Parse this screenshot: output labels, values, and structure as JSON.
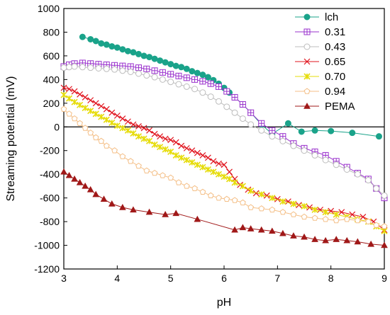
{
  "chart_data": {
    "type": "line",
    "xlabel": "pH",
    "ylabel": "Streaming potential (mV)",
    "xlim": [
      3,
      9
    ],
    "ylim": [
      -1200,
      1000
    ],
    "xticks": [
      3,
      4,
      5,
      6,
      7,
      8,
      9
    ],
    "yticks": [
      -1200,
      -1000,
      -800,
      -600,
      -400,
      -200,
      0,
      200,
      400,
      600,
      800,
      1000
    ],
    "zero_line": true,
    "grid": false,
    "legend_position": "top-right",
    "series": [
      {
        "name": "lch",
        "color": "#1aa38a",
        "marker": "circle-filled",
        "x": [
          3.35,
          3.5,
          3.6,
          3.7,
          3.8,
          3.9,
          4.0,
          4.1,
          4.2,
          4.3,
          4.4,
          4.5,
          4.6,
          4.7,
          4.8,
          4.9,
          5.0,
          5.1,
          5.2,
          5.3,
          5.4,
          5.5,
          5.6,
          5.7,
          5.8,
          5.9,
          6.0,
          6.1,
          6.2,
          6.35,
          6.5,
          6.7,
          6.9,
          7.2,
          7.45,
          7.7,
          8.0,
          8.4,
          8.9
        ],
        "y": [
          760,
          740,
          725,
          705,
          695,
          680,
          670,
          655,
          640,
          630,
          615,
          600,
          590,
          575,
          560,
          545,
          530,
          515,
          505,
          490,
          470,
          455,
          440,
          420,
          395,
          365,
          330,
          290,
          250,
          190,
          120,
          20,
          -60,
          30,
          -40,
          -30,
          -35,
          -50,
          -80
        ]
      },
      {
        "name": "0.31",
        "color": "#9a32cd",
        "marker": "square-cross",
        "x": [
          3.0,
          3.1,
          3.2,
          3.35,
          3.5,
          3.65,
          3.8,
          3.95,
          4.1,
          4.25,
          4.4,
          4.55,
          4.7,
          4.85,
          5.0,
          5.15,
          5.3,
          5.45,
          5.6,
          5.75,
          5.9,
          6.05,
          6.2,
          6.35,
          6.5,
          6.7,
          6.9,
          7.1,
          7.3,
          7.5,
          7.7,
          7.9,
          8.1,
          8.3,
          8.5,
          8.7,
          8.85,
          9.0
        ],
        "y": [
          510,
          525,
          535,
          540,
          535,
          530,
          525,
          520,
          515,
          510,
          500,
          490,
          475,
          460,
          445,
          430,
          415,
          400,
          385,
          365,
          340,
          300,
          250,
          190,
          120,
          30,
          -30,
          -80,
          -140,
          -180,
          -210,
          -240,
          -290,
          -340,
          -390,
          -440,
          -520,
          -600
        ]
      },
      {
        "name": "0.43",
        "color": "#bdbdbd",
        "marker": "circle-open",
        "x": [
          3.0,
          3.1,
          3.2,
          3.35,
          3.5,
          3.65,
          3.8,
          3.95,
          4.1,
          4.25,
          4.4,
          4.55,
          4.7,
          4.85,
          5.0,
          5.15,
          5.3,
          5.45,
          5.6,
          5.75,
          5.9,
          6.05,
          6.2,
          6.35,
          6.5,
          6.7,
          6.9,
          7.1,
          7.3,
          7.5,
          7.7,
          7.9,
          8.1,
          8.3,
          8.5,
          8.7,
          8.85,
          9.0
        ],
        "y": [
          500,
          505,
          510,
          505,
          500,
          495,
          490,
          485,
          475,
          465,
          450,
          435,
          420,
          400,
          380,
          360,
          340,
          320,
          290,
          255,
          215,
          170,
          120,
          70,
          20,
          -30,
          -80,
          -120,
          -160,
          -200,
          -240,
          -280,
          -320,
          -360,
          -400,
          -450,
          -520,
          -580
        ]
      },
      {
        "name": "0.65",
        "color": "#e0141e",
        "marker": "x-cross",
        "x": [
          3.0,
          3.1,
          3.2,
          3.3,
          3.4,
          3.5,
          3.6,
          3.7,
          3.8,
          3.9,
          4.0,
          4.1,
          4.2,
          4.3,
          4.4,
          4.5,
          4.6,
          4.7,
          4.8,
          4.9,
          5.0,
          5.1,
          5.2,
          5.3,
          5.4,
          5.5,
          5.6,
          5.7,
          5.8,
          5.9,
          6.0,
          6.1,
          6.2,
          6.3,
          6.45,
          6.6,
          6.8,
          7.0,
          7.2,
          7.4,
          7.6,
          7.8,
          8.0,
          8.2,
          8.4,
          8.6,
          8.8,
          9.0
        ],
        "y": [
          330,
          320,
          300,
          275,
          250,
          225,
          200,
          175,
          150,
          120,
          95,
          70,
          45,
          20,
          5,
          -10,
          -30,
          -60,
          -80,
          -100,
          -110,
          -130,
          -160,
          -180,
          -200,
          -220,
          -240,
          -260,
          -290,
          -310,
          -320,
          -380,
          -440,
          -490,
          -530,
          -560,
          -580,
          -610,
          -630,
          -660,
          -680,
          -700,
          -710,
          -720,
          -740,
          -760,
          -800,
          -870
        ]
      },
      {
        "name": "0.70",
        "color": "#e6dc0a",
        "marker": "star",
        "x": [
          3.0,
          3.1,
          3.2,
          3.3,
          3.4,
          3.5,
          3.6,
          3.7,
          3.8,
          3.9,
          4.0,
          4.1,
          4.2,
          4.3,
          4.4,
          4.5,
          4.6,
          4.7,
          4.8,
          4.9,
          5.0,
          5.1,
          5.2,
          5.3,
          5.4,
          5.5,
          5.6,
          5.7,
          5.8,
          5.9,
          6.0,
          6.1,
          6.2,
          6.35,
          6.5,
          6.7,
          6.9,
          7.1,
          7.3,
          7.5,
          7.7,
          7.9,
          8.1,
          8.3,
          8.5,
          8.7,
          8.85,
          9.0
        ],
        "y": [
          270,
          240,
          210,
          185,
          160,
          135,
          110,
          85,
          60,
          35,
          10,
          -10,
          -30,
          -55,
          -80,
          -100,
          -120,
          -150,
          -170,
          -190,
          -210,
          -240,
          -260,
          -280,
          -300,
          -320,
          -340,
          -360,
          -380,
          -400,
          -420,
          -440,
          -470,
          -500,
          -540,
          -570,
          -600,
          -630,
          -650,
          -670,
          -700,
          -720,
          -740,
          -760,
          -780,
          -800,
          -840,
          -880
        ]
      },
      {
        "name": "0.94",
        "color": "#f4bf87",
        "marker": "pentagon-open",
        "x": [
          3.0,
          3.1,
          3.2,
          3.3,
          3.4,
          3.5,
          3.6,
          3.7,
          3.8,
          3.95,
          4.1,
          4.25,
          4.4,
          4.55,
          4.7,
          4.85,
          5.0,
          5.15,
          5.3,
          5.45,
          5.6,
          5.75,
          5.9,
          6.05,
          6.2,
          6.35,
          6.5,
          6.7,
          6.9,
          7.1,
          7.3,
          7.5,
          7.7,
          7.9,
          8.1,
          8.3,
          8.5,
          8.7,
          8.85,
          9.0
        ],
        "y": [
          150,
          110,
          70,
          30,
          -10,
          -50,
          -90,
          -120,
          -160,
          -200,
          -250,
          -290,
          -330,
          -370,
          -390,
          -410,
          -430,
          -470,
          -500,
          -520,
          -550,
          -580,
          -600,
          -610,
          -620,
          -640,
          -680,
          -690,
          -700,
          -720,
          -740,
          -760,
          -770,
          -780,
          -790,
          -780,
          -790,
          -800,
          -830,
          -840
        ]
      },
      {
        "name": "PEMA",
        "color": "#a01818",
        "marker": "triangle-filled",
        "x": [
          3.0,
          3.1,
          3.2,
          3.3,
          3.4,
          3.5,
          3.6,
          3.75,
          3.9,
          4.1,
          4.3,
          4.6,
          4.9,
          5.1,
          5.5,
          6.2,
          6.35,
          6.5,
          6.7,
          6.9,
          7.1,
          7.3,
          7.5,
          7.7,
          7.9,
          8.1,
          8.3,
          8.5,
          8.75,
          9.0
        ],
        "y": [
          -380,
          -410,
          -440,
          -470,
          -500,
          -530,
          -570,
          -610,
          -650,
          -680,
          -700,
          -720,
          -740,
          -730,
          -780,
          -870,
          -850,
          -860,
          -870,
          -880,
          -900,
          -920,
          -930,
          -950,
          -960,
          -950,
          -960,
          -970,
          -990,
          -1000
        ]
      }
    ]
  }
}
